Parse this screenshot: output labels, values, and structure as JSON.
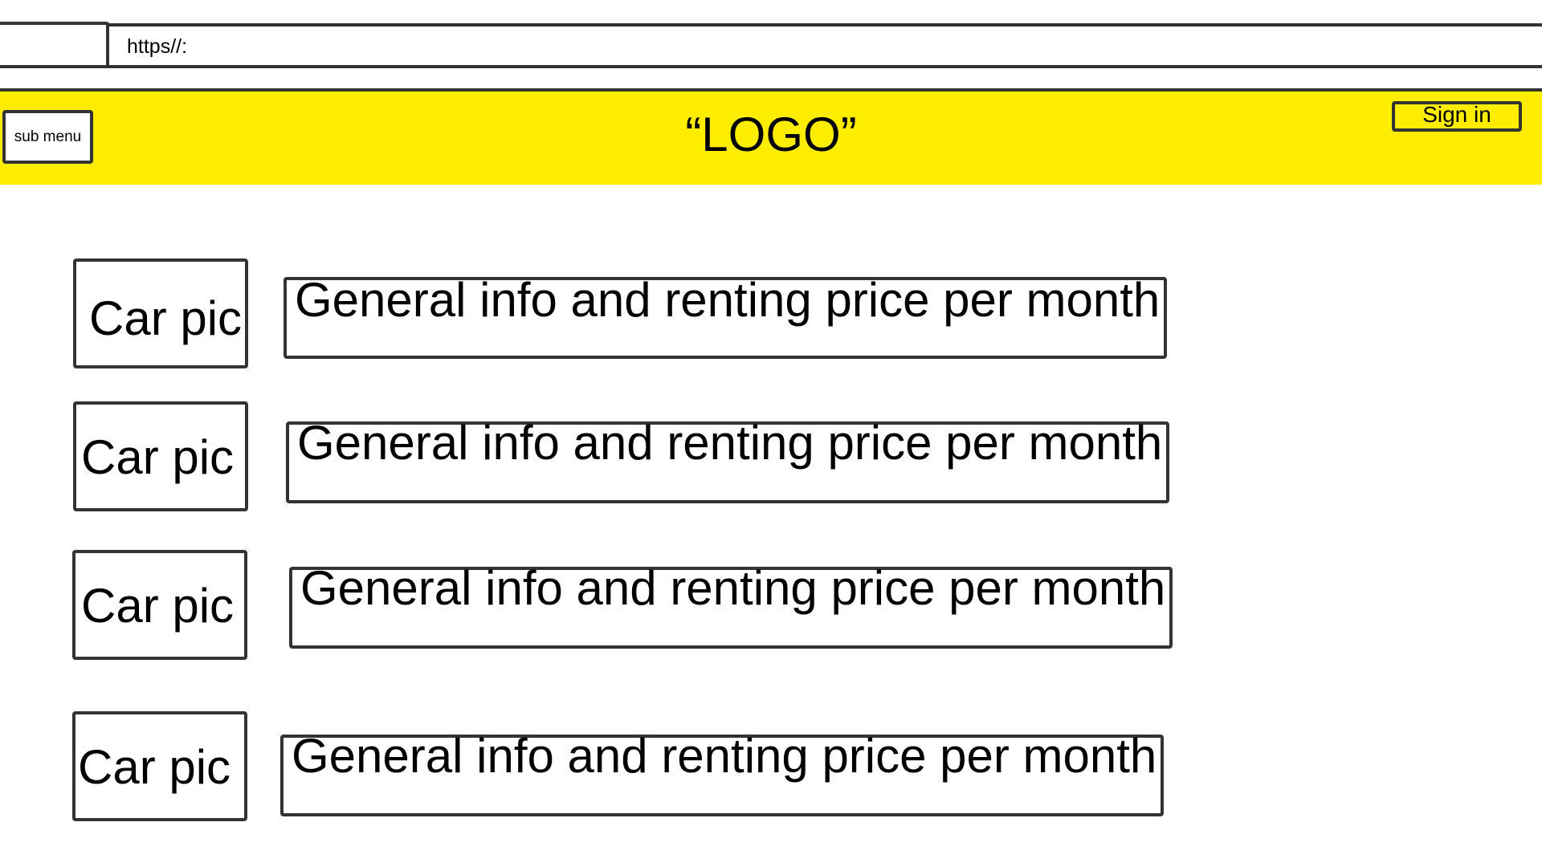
{
  "browser": {
    "url": "https//:"
  },
  "header": {
    "sub_menu_label": "sub menu",
    "logo_text": "“LOGO”",
    "sign_in_label": "Sign in",
    "background_color": "#ffed00"
  },
  "listings": [
    {
      "image_label": "Car pic",
      "info_label": "General info and renting price per month"
    },
    {
      "image_label": "Car pic",
      "info_label": "General info and renting price per month"
    },
    {
      "image_label": "Car pic",
      "info_label": "General info and renting price per month"
    },
    {
      "image_label": "Car pic",
      "info_label": "General info and renting price per month"
    }
  ]
}
